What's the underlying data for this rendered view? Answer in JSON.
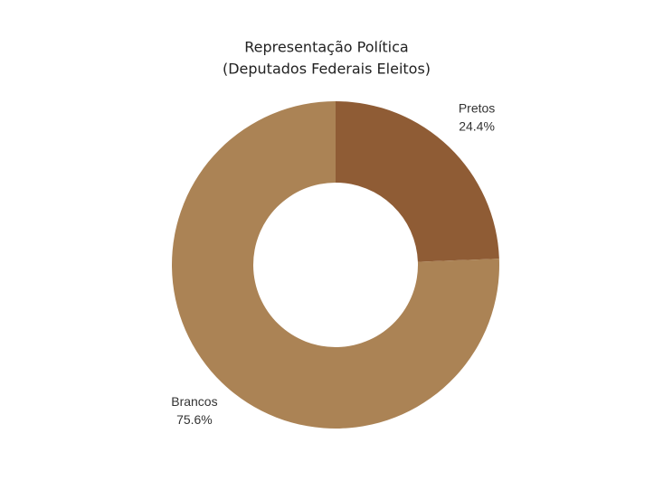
{
  "chart_data": {
    "type": "donut",
    "title": [
      "Representação Política",
      "(Deputados Federais Eleitos)"
    ],
    "categories": [
      "Pretos",
      "Brancos"
    ],
    "values": [
      24.4,
      75.6
    ],
    "value_labels": [
      "24.4%",
      "75.6%"
    ],
    "colors": [
      "#8f5c35",
      "#ab8355"
    ]
  }
}
